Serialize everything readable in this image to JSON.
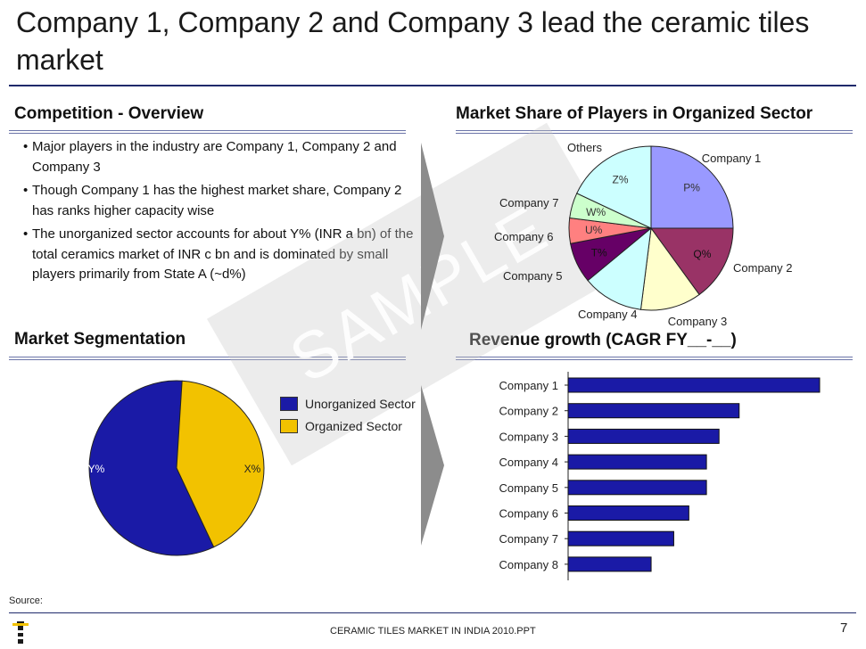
{
  "slide": {
    "title": "Company 1, Company 2 and Company 3 lead the ceramic tiles market",
    "watermark": "SAMPLE",
    "source_label": "Source:",
    "footer_text": "CERAMIC TILES MARKET IN INDIA 2010.PPT",
    "page_number": "7",
    "colors": {
      "navy": "#1f2a6b",
      "blue": "#1a1aa6",
      "gold": "#f2c200"
    }
  },
  "competition": {
    "heading": "Competition - Overview",
    "bullets": [
      "Major players in the industry are Company 1, Company 2 and Company 3",
      "Though Company 1 has the highest market share, Company 2 has ranks higher capacity wise",
      "The unorganized sector accounts for about Y% (INR a bn) of the total ceramics market of INR c bn and is dominated by small players primarily from State A (~d%)"
    ]
  },
  "market_share": {
    "heading": "Market Share of Players in Organized Sector"
  },
  "segmentation": {
    "heading": "Market Segmentation"
  },
  "revenue": {
    "heading": "Revenue growth (CAGR FY__-__)"
  },
  "chart_data": [
    {
      "type": "pie",
      "title": "Market Share of Players in Organized Sector",
      "slices": [
        {
          "label": "Company 1",
          "value_label": "P%",
          "share": 0.25,
          "color": "#9999ff"
        },
        {
          "label": "Company 2",
          "value_label": "Q%",
          "share": 0.15,
          "color": "#993366"
        },
        {
          "label": "Company 3",
          "value_label": "",
          "share": 0.12,
          "color": "#ffffcc"
        },
        {
          "label": "Company 4",
          "value_label": "",
          "share": 0.12,
          "color": "#ccffff"
        },
        {
          "label": "Company 5",
          "value_label": "T%",
          "share": 0.08,
          "color": "#660066"
        },
        {
          "label": "Company 6",
          "value_label": "U%",
          "share": 0.05,
          "color": "#ff8080"
        },
        {
          "label": "Company 7",
          "value_label": "W%",
          "share": 0.05,
          "color": "#ccffcc"
        },
        {
          "label": "Others",
          "value_label": "Z%",
          "share": 0.18,
          "color": "#ccffff"
        }
      ]
    },
    {
      "type": "pie",
      "title": "Market Segmentation",
      "slices": [
        {
          "label": "Unorganized Sector",
          "value_label": "Y%",
          "share": 0.58,
          "color": "#1a1aa6"
        },
        {
          "label": "Organized Sector",
          "value_label": "X%",
          "share": 0.42,
          "color": "#f2c200"
        }
      ],
      "legend": "right"
    },
    {
      "type": "bar",
      "orientation": "horizontal",
      "title": "Revenue growth (CAGR FY__-__)",
      "categories": [
        "Company 1",
        "Company 2",
        "Company 3",
        "Company 4",
        "Company 5",
        "Company 6",
        "Company 7",
        "Company 8"
      ],
      "values": [
        100,
        68,
        60,
        55,
        55,
        48,
        42,
        33
      ],
      "color": "#1a1aa6",
      "xlim": [
        0,
        100
      ],
      "grid": false
    }
  ]
}
